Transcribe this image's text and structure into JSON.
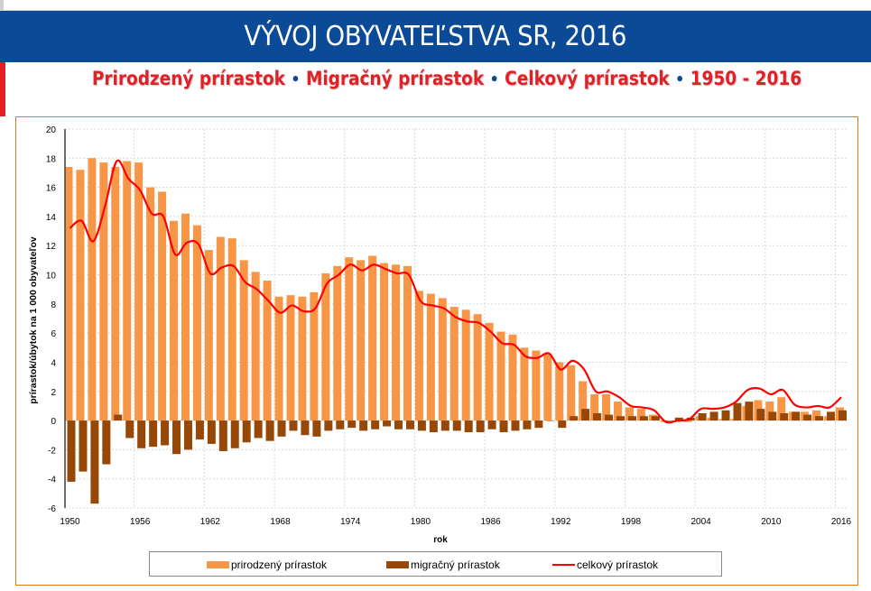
{
  "header": {
    "title": "VÝVOJ OBYVATEĽSTVA SR, 2016",
    "subtitle_parts": [
      "Prirodzený prírastok",
      "Migračný prírastok",
      "Celkový prírastok",
      "1950 - 2016"
    ],
    "separator": "•"
  },
  "colors": {
    "header_bg": "#0b4a96",
    "accent_red": "#e32026",
    "natural": "#f79646",
    "migration": "#974806",
    "total": "#ff0000",
    "frame": "#e07a1f"
  },
  "chart_data": {
    "type": "bar",
    "title": "",
    "xlabel": "rok",
    "ylabel": "prírastok/úbytok na 1 000 obyvateľov",
    "ylim": [
      -6,
      20
    ],
    "yticks": [
      "20",
      "18",
      "16",
      "14",
      "12",
      "10",
      "8",
      "6",
      "4",
      "2",
      "0",
      "-2",
      "-4",
      "-6"
    ],
    "xticks": [
      "1950",
      "1956",
      "1962",
      "1968",
      "1974",
      "1980",
      "1986",
      "1992",
      "1998",
      "2004",
      "2010",
      "2016"
    ],
    "grid": true,
    "legend_position": "bottom",
    "x": [
      1950,
      1951,
      1952,
      1953,
      1954,
      1955,
      1956,
      1957,
      1958,
      1959,
      1960,
      1961,
      1962,
      1963,
      1964,
      1965,
      1966,
      1967,
      1968,
      1969,
      1970,
      1971,
      1972,
      1973,
      1974,
      1975,
      1976,
      1977,
      1978,
      1979,
      1980,
      1981,
      1982,
      1983,
      1984,
      1985,
      1986,
      1987,
      1988,
      1989,
      1990,
      1991,
      1992,
      1993,
      1994,
      1995,
      1996,
      1997,
      1998,
      1999,
      2000,
      2001,
      2002,
      2003,
      2004,
      2005,
      2006,
      2007,
      2008,
      2009,
      2010,
      2011,
      2012,
      2013,
      2014,
      2015,
      2016
    ],
    "series": [
      {
        "name": "prirodzený prírastok",
        "kind": "bar",
        "values": [
          17.4,
          17.2,
          18.0,
          17.7,
          17.4,
          17.8,
          17.7,
          16.0,
          15.7,
          13.7,
          14.2,
          13.4,
          11.7,
          12.6,
          12.5,
          11.0,
          10.2,
          9.6,
          8.5,
          8.6,
          8.5,
          8.8,
          10.1,
          10.6,
          11.2,
          11.0,
          11.3,
          10.8,
          10.7,
          10.6,
          8.9,
          8.7,
          8.4,
          7.8,
          7.6,
          7.3,
          6.7,
          6.1,
          5.9,
          5.0,
          4.8,
          4.6,
          4.0,
          3.8,
          2.7,
          1.8,
          1.8,
          1.3,
          0.9,
          0.8,
          0.4,
          -0.1,
          -0.1,
          -0.1,
          0.3,
          0.2,
          0.1,
          0.1,
          1.0,
          1.4,
          1.3,
          1.6,
          0.6,
          0.6,
          0.7,
          0.3,
          0.9
        ]
      },
      {
        "name": "migračný prírastok",
        "kind": "bar",
        "values": [
          -4.2,
          -3.5,
          -5.7,
          -3.0,
          0.4,
          -1.2,
          -1.9,
          -1.8,
          -1.7,
          -2.3,
          -2.0,
          -1.3,
          -1.6,
          -2.1,
          -1.9,
          -1.5,
          -1.2,
          -1.4,
          -1.1,
          -0.7,
          -1.0,
          -1.1,
          -0.7,
          -0.6,
          -0.5,
          -0.7,
          -0.6,
          -0.4,
          -0.6,
          -0.6,
          -0.7,
          -0.8,
          -0.7,
          -0.7,
          -0.8,
          -0.8,
          -0.6,
          -0.8,
          -0.7,
          -0.6,
          -0.5,
          0.0,
          -0.5,
          0.3,
          0.8,
          0.5,
          0.4,
          0.3,
          0.3,
          0.3,
          0.3,
          0.0,
          0.2,
          0.2,
          0.5,
          0.6,
          0.7,
          1.2,
          1.3,
          0.8,
          0.6,
          0.5,
          0.6,
          0.4,
          0.3,
          0.6,
          0.7
        ]
      },
      {
        "name": "celkový prírastok",
        "kind": "line",
        "values": [
          13.2,
          13.7,
          12.3,
          14.7,
          17.8,
          16.6,
          15.8,
          14.2,
          14.0,
          11.4,
          12.2,
          12.1,
          10.1,
          10.5,
          10.6,
          9.5,
          9.0,
          8.2,
          7.4,
          7.9,
          7.5,
          7.7,
          9.4,
          10.0,
          10.7,
          10.3,
          10.7,
          10.4,
          10.1,
          10.0,
          8.2,
          7.9,
          7.7,
          7.1,
          6.8,
          6.7,
          6.1,
          5.3,
          5.2,
          4.4,
          4.3,
          4.6,
          3.5,
          4.1,
          3.5,
          2.0,
          2.0,
          1.6,
          1.0,
          0.9,
          0.7,
          -0.1,
          0.0,
          0.1,
          0.8,
          0.8,
          0.9,
          1.3,
          2.1,
          2.2,
          1.8,
          2.1,
          1.1,
          0.9,
          1.0,
          0.9,
          1.6
        ]
      }
    ]
  },
  "legend": {
    "items": [
      {
        "label": "prirodzený prírastok",
        "swatch": "bar",
        "color": "#f79646"
      },
      {
        "label": "migračný prírastok",
        "swatch": "bar",
        "color": "#974806"
      },
      {
        "label": "celkový prírastok",
        "swatch": "line",
        "color": "#ff0000"
      }
    ]
  }
}
